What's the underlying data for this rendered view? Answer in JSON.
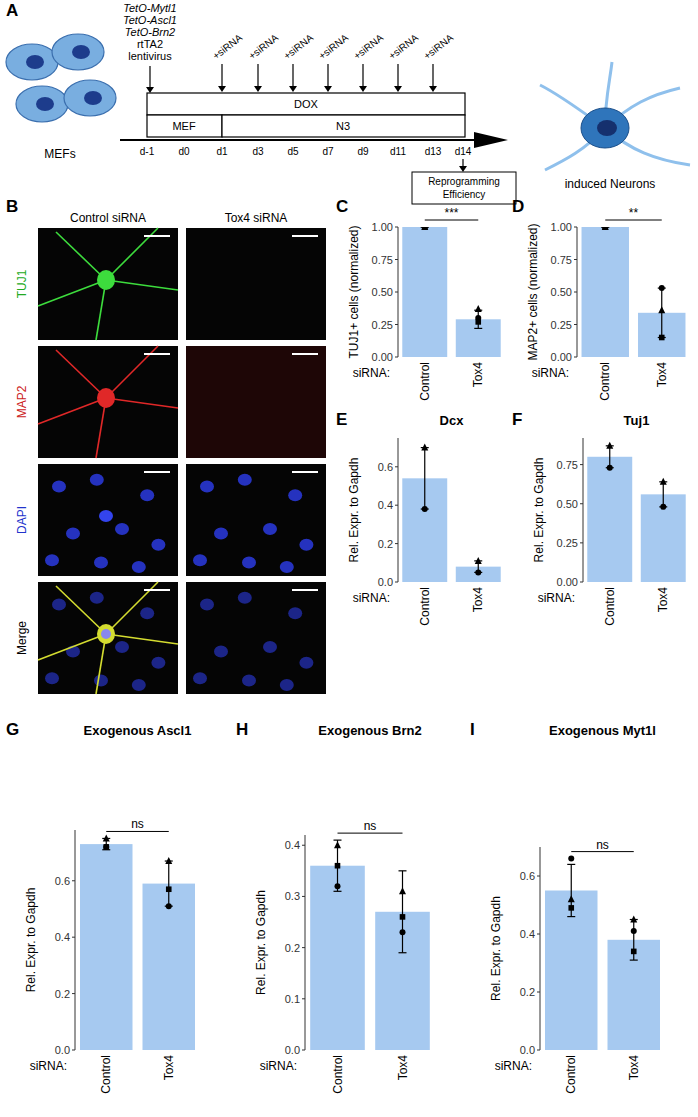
{
  "diagram": {
    "panel": "A",
    "vectors": [
      "TetO-Mytl1",
      "TetO-Ascl1",
      "TetO-Brn2",
      "rtTA2",
      "lentivirus"
    ],
    "start_cells": "MEFs",
    "end_cells": "induced Neurons",
    "treatment": "+siRNA",
    "siRNA_days": [
      "d1",
      "d3",
      "d5",
      "d7",
      "d9",
      "d11",
      "d13"
    ],
    "bars": {
      "top": "DOX",
      "medium_1": "MEF",
      "medium_2": "N3"
    },
    "days": [
      "d-1",
      "d0",
      "d1",
      "d3",
      "d5",
      "d7",
      "d9",
      "d11",
      "d13",
      "d14"
    ],
    "readout": [
      "Reprogramming",
      "Efficiency"
    ]
  },
  "images": {
    "panel": "B",
    "columns": [
      "Control siRNA",
      "Tox4 siRNA"
    ],
    "rows": [
      "TUJ1",
      "MAP2",
      "DAPI",
      "Merge"
    ]
  },
  "chart_data": [
    {
      "type": "bar",
      "panel": "C",
      "y_label": "TUJ1+ cells (normalized)",
      "x_label": "siRNA:",
      "categories": [
        "Control",
        "Tox4"
      ],
      "values": [
        1.0,
        0.29
      ],
      "errors": [
        0.0,
        0.07
      ],
      "points": [
        [
          1.0,
          1.0,
          1.0
        ],
        [
          0.37,
          0.3,
          0.27
        ]
      ],
      "color": "#a6c9f0",
      "ylim": [
        0,
        1
      ],
      "yticks": [
        {
          "value": 0,
          "label": "0.00"
        },
        0.25,
        {
          "value": 0.5,
          "label": "0.50"
        },
        0.75,
        {
          "value": 1,
          "label": "1.00"
        }
      ],
      "annotation": "***"
    },
    {
      "type": "bar",
      "panel": "D",
      "y_label": "MAP2+ cells (normalized)",
      "x_label": "siRNA:",
      "categories": [
        "Control",
        "Tox4"
      ],
      "values": [
        1.0,
        0.34
      ],
      "errors": [
        0.0,
        0.19
      ],
      "points": [
        [
          1.0,
          1.0,
          1.0
        ],
        [
          0.36,
          0.53,
          0.15
        ]
      ],
      "color": "#a6c9f0",
      "ylim": [
        0,
        1
      ],
      "yticks": [
        {
          "value": 0,
          "label": "0.00"
        },
        0.25,
        {
          "value": 0.5,
          "label": "0.50"
        },
        0.75,
        {
          "value": 1,
          "label": "1.00"
        }
      ],
      "annotation": "**"
    },
    {
      "type": "bar",
      "panel": "E",
      "title": "Dcx",
      "y_label": "Rel. Expr. to Gapdh",
      "x_label": "siRNA:",
      "categories": [
        "Control",
        "Tox4"
      ],
      "values": [
        0.54,
        0.08
      ],
      "errors": [
        0.16,
        0.03
      ],
      "points": [
        [
          0.7,
          0.38
        ],
        [
          0.11,
          0.05
        ]
      ],
      "color": "#a6c9f0",
      "ylim": [
        0,
        0.75
      ],
      "yticks": [
        {
          "value": 0,
          "label": "0.0"
        },
        0.2,
        0.4,
        0.6
      ]
    },
    {
      "type": "bar",
      "panel": "F",
      "title": "Tuj1",
      "y_label": "Rel. Expr. to Gapdh",
      "x_label": "siRNA:",
      "categories": [
        "Control",
        "Tox4"
      ],
      "values": [
        0.8,
        0.56
      ],
      "errors": [
        0.07,
        0.08
      ],
      "points": [
        [
          0.87,
          0.73
        ],
        [
          0.64,
          0.48
        ]
      ],
      "color": "#a6c9f0",
      "ylim": [
        0,
        0.92
      ],
      "yticks": [
        {
          "value": 0,
          "label": "0.00"
        },
        0.25,
        {
          "value": 0.5,
          "label": "0.50"
        },
        0.75
      ]
    },
    {
      "type": "bar",
      "panel": "G",
      "title": "Exogenous Ascl1",
      "y_label": "Rel. Expr. to Gapdh",
      "x_label": "siRNA:",
      "categories": [
        "Control",
        "Tox4"
      ],
      "values": [
        0.73,
        0.59
      ],
      "errors": [
        0.02,
        0.08
      ],
      "points": [
        [
          0.75,
          0.72,
          0.72
        ],
        [
          0.67,
          0.51,
          0.57
        ]
      ],
      "color": "#a6c9f0",
      "ylim": [
        0,
        0.78
      ],
      "yticks": [
        {
          "value": 0,
          "label": "0.0"
        },
        0.2,
        0.4,
        0.6
      ],
      "annotation": "ns"
    },
    {
      "type": "bar",
      "panel": "H",
      "title": "Exogenous Brn2",
      "y_label": "Rel. Expr. to Gapdh",
      "x_label": "siRNA:",
      "categories": [
        "Control",
        "Tox4"
      ],
      "values": [
        0.36,
        0.27
      ],
      "errors": [
        0.05,
        0.08
      ],
      "points": [
        [
          0.4,
          0.32,
          0.36
        ],
        [
          0.31,
          0.23,
          0.26
        ]
      ],
      "color": "#a6c9f0",
      "ylim": [
        0,
        0.42
      ],
      "yticks": [
        {
          "value": 0,
          "label": "0.0"
        },
        0.1,
        0.2,
        0.3,
        0.4
      ],
      "annotation": "ns"
    },
    {
      "type": "bar",
      "panel": "I",
      "title": "Exogenous Myt1l",
      "y_label": "Rel. Expr. to Gapdh",
      "x_label": "siRNA:",
      "categories": [
        "Control",
        "Tox4"
      ],
      "values": [
        0.55,
        0.38
      ],
      "errors": [
        0.09,
        0.07
      ],
      "points": [
        [
          0.52,
          0.66,
          0.49
        ],
        [
          0.45,
          0.41,
          0.34
        ]
      ],
      "color": "#a6c9f0",
      "ylim": [
        0,
        0.7
      ],
      "yticks": [
        {
          "value": 0,
          "label": "0.0"
        },
        0.2,
        0.4,
        0.6
      ],
      "annotation": "ns"
    }
  ]
}
